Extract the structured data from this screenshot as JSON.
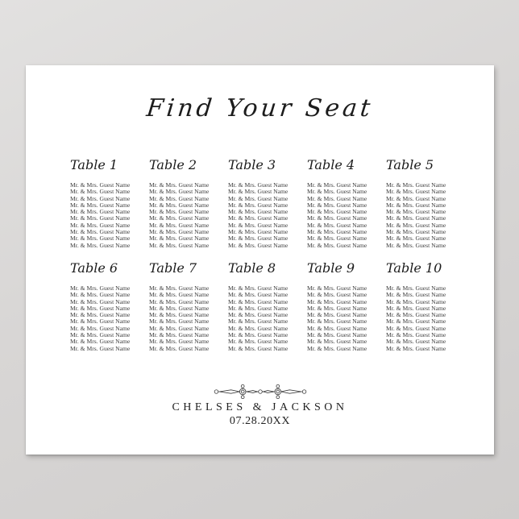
{
  "page": {
    "background_color": "#d7d5d4",
    "paper_color": "#ffffff",
    "text_color": "#1c1c1c",
    "guest_text_color": "#3c3c3c"
  },
  "poster": {
    "title": "Find Your Seat",
    "sections": [
      {
        "tables": [
          {
            "label": "Table 1",
            "guests": [
              "Mr. & Mrs. Guest Name",
              "Mr. & Mrs. Guest Name",
              "Mr. & Mrs. Guest Name",
              "Mr. & Mrs. Guest Name",
              "Mr. & Mrs. Guest Name",
              "Mr. & Mrs. Guest Name",
              "Mr. & Mrs. Guest Name",
              "Mr. & Mrs. Guest Name",
              "Mr. & Mrs. Guest Name",
              "Mr. & Mrs. Guest Name"
            ]
          },
          {
            "label": "Table 2",
            "guests": [
              "Mr. & Mrs. Guest Name",
              "Mr. & Mrs. Guest Name",
              "Mr. & Mrs. Guest Name",
              "Mr. & Mrs. Guest Name",
              "Mr. & Mrs. Guest Name",
              "Mr. & Mrs. Guest Name",
              "Mr. & Mrs. Guest Name",
              "Mr. & Mrs. Guest Name",
              "Mr. & Mrs. Guest Name",
              "Mr. & Mrs. Guest Name"
            ]
          },
          {
            "label": "Table 3",
            "guests": [
              "Mr. & Mrs. Guest Name",
              "Mr. & Mrs. Guest Name",
              "Mr. & Mrs. Guest Name",
              "Mr. & Mrs. Guest Name",
              "Mr. & Mrs. Guest Name",
              "Mr. & Mrs. Guest Name",
              "Mr. & Mrs. Guest Name",
              "Mr. & Mrs. Guest Name",
              "Mr. & Mrs. Guest Name",
              "Mr. & Mrs. Guest Name"
            ]
          },
          {
            "label": "Table 4",
            "guests": [
              "Mr. & Mrs. Guest Name",
              "Mr. & Mrs. Guest Name",
              "Mr. & Mrs. Guest Name",
              "Mr. & Mrs. Guest Name",
              "Mr. & Mrs. Guest Name",
              "Mr. & Mrs. Guest Name",
              "Mr. & Mrs. Guest Name",
              "Mr. & Mrs. Guest Name",
              "Mr. & Mrs. Guest Name",
              "Mr. & Mrs. Guest Name"
            ]
          },
          {
            "label": "Table 5",
            "guests": [
              "Mr. & Mrs. Guest Name",
              "Mr. & Mrs. Guest Name",
              "Mr. & Mrs. Guest Name",
              "Mr. & Mrs. Guest Name",
              "Mr. & Mrs. Guest Name",
              "Mr. & Mrs. Guest Name",
              "Mr. & Mrs. Guest Name",
              "Mr. & Mrs. Guest Name",
              "Mr. & Mrs. Guest Name",
              "Mr. & Mrs. Guest Name"
            ]
          }
        ]
      },
      {
        "tables": [
          {
            "label": "Table 6",
            "guests": [
              "Mr. & Mrs. Guest Name",
              "Mr. & Mrs. Guest Name",
              "Mr. & Mrs. Guest Name",
              "Mr. & Mrs. Guest Name",
              "Mr. & Mrs. Guest Name",
              "Mr. & Mrs. Guest Name",
              "Mr. & Mrs. Guest Name",
              "Mr. & Mrs. Guest Name",
              "Mr. & Mrs. Guest Name",
              "Mr. & Mrs. Guest Name"
            ]
          },
          {
            "label": "Table 7",
            "guests": [
              "Mr. & Mrs. Guest Name",
              "Mr. & Mrs. Guest Name",
              "Mr. & Mrs. Guest Name",
              "Mr. & Mrs. Guest Name",
              "Mr. & Mrs. Guest Name",
              "Mr. & Mrs. Guest Name",
              "Mr. & Mrs. Guest Name",
              "Mr. & Mrs. Guest Name",
              "Mr. & Mrs. Guest Name",
              "Mr. & Mrs. Guest Name"
            ]
          },
          {
            "label": "Table 8",
            "guests": [
              "Mr. & Mrs. Guest Name",
              "Mr. & Mrs. Guest Name",
              "Mr. & Mrs. Guest Name",
              "Mr. & Mrs. Guest Name",
              "Mr. & Mrs. Guest Name",
              "Mr. & Mrs. Guest Name",
              "Mr. & Mrs. Guest Name",
              "Mr. & Mrs. Guest Name",
              "Mr. & Mrs. Guest Name",
              "Mr. & Mrs. Guest Name"
            ]
          },
          {
            "label": "Table 9",
            "guests": [
              "Mr. & Mrs. Guest Name",
              "Mr. & Mrs. Guest Name",
              "Mr. & Mrs. Guest Name",
              "Mr. & Mrs. Guest Name",
              "Mr. & Mrs. Guest Name",
              "Mr. & Mrs. Guest Name",
              "Mr. & Mrs. Guest Name",
              "Mr. & Mrs. Guest Name",
              "Mr. & Mrs. Guest Name",
              "Mr. & Mrs. Guest Name"
            ]
          },
          {
            "label": "Table 10",
            "guests": [
              "Mr. & Mrs. Guest Name",
              "Mr. & Mrs. Guest Name",
              "Mr. & Mrs. Guest Name",
              "Mr. & Mrs. Guest Name",
              "Mr. & Mrs. Guest Name",
              "Mr. & Mrs. Guest Name",
              "Mr. & Mrs. Guest Name",
              "Mr. & Mrs. Guest Name",
              "Mr. & Mrs. Guest Name",
              "Mr. & Mrs. Guest Name"
            ]
          }
        ]
      }
    ],
    "footer": {
      "divider_icon": "ornamental-divider-icon",
      "couple_names": "CHELSES & JACKSON",
      "date": "07.28.20XX"
    }
  }
}
